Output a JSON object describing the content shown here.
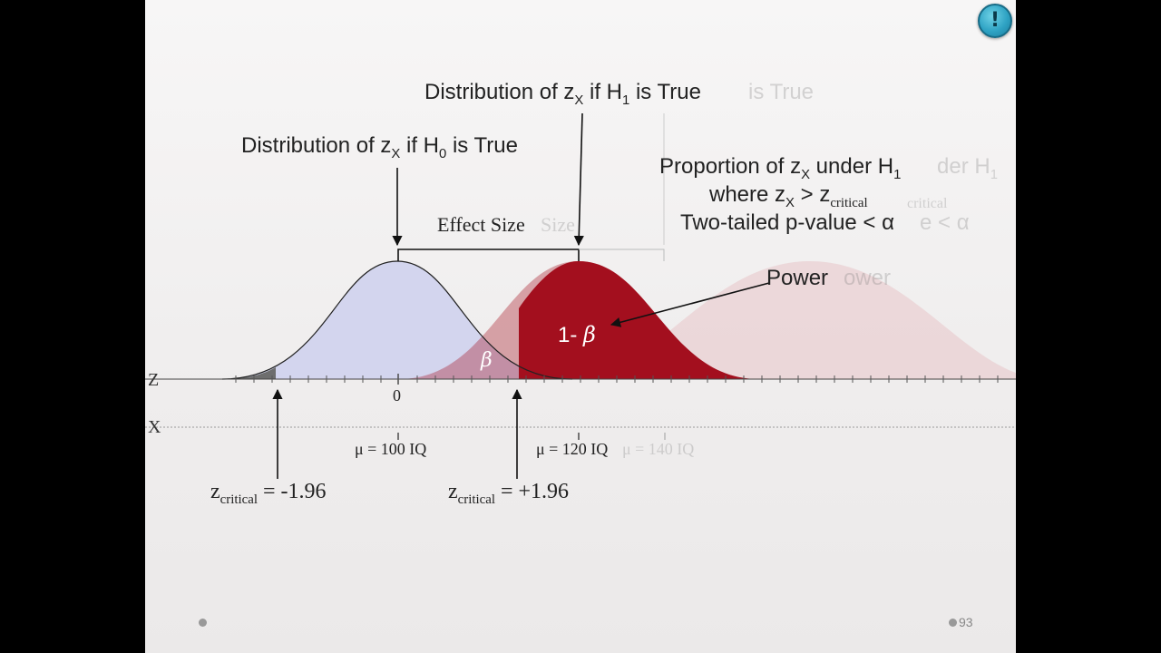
{
  "labels": {
    "h0_prefix": "Distribution of z",
    "h0_sub": "X",
    "h0_suffix": " if H",
    "h0_sub2": "0",
    "h0_end": " is True",
    "h1_prefix": "Distribution of z",
    "h1_sub": "X",
    "h1_suffix": " if H",
    "h1_sub2": "1",
    "h1_end": " is True",
    "ghost_is_true": "is True",
    "prop_line1_a": "Proportion of z",
    "prop_line1_sub": "X",
    "prop_line1_b": " under H",
    "prop_line1_sub2": "1",
    "ghost_der": "der H",
    "ghost_der_sub": "1",
    "prop_line2_a": "where z",
    "prop_line2_sub": "X",
    "prop_line2_b": " > z",
    "prop_line2_sub2": "critical",
    "ghost_critical": "critical",
    "prop_line3": "Two-tailed p-value < α",
    "ghost_lt_alpha": "e < α",
    "effect_size": "Effect Size",
    "ghost_size": "Size",
    "power": "Power",
    "ghost_power": "ower",
    "beta": "β",
    "one_minus_beta_a": "1- ",
    "one_minus_beta_b": "β",
    "axis_z": "Z",
    "axis_x": "X",
    "zero": "0",
    "mu100": "μ = 100 IQ",
    "mu120": "μ = 120 IQ",
    "mu140_ghost": "μ = 140 IQ",
    "zcrit_left_a": "z",
    "zcrit_left_sub": "critical",
    "zcrit_left_b": " = -1.96",
    "zcrit_right_a": "z",
    "zcrit_right_sub": "critical",
    "zcrit_right_b": " = +1.96",
    "info_icon": "!",
    "page_number": "93"
  },
  "colors": {
    "h0_fill": "#d3d5ee",
    "h1_fill": "#a30f1e",
    "tail_fill": "#6e6e6e",
    "ghost_fill": "#e8c4c8"
  }
}
